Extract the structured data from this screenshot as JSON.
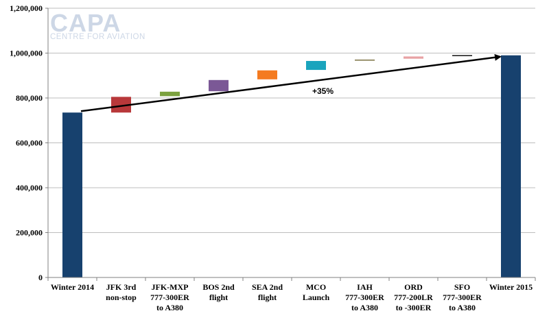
{
  "logo": {
    "main": "CAPA",
    "sub": "CENTRE FOR AVIATION"
  },
  "chart_data": {
    "type": "waterfall",
    "title": "",
    "xlabel": "",
    "ylabel": "",
    "ylim": [
      0,
      1200000
    ],
    "yticks": [
      0,
      200000,
      400000,
      600000,
      800000,
      1000000,
      1200000
    ],
    "ytick_labels": [
      "0",
      "200,000",
      "400,000",
      "600,000",
      "800,000",
      "1,000,000",
      "1,200,000"
    ],
    "grid": true,
    "categories": [
      {
        "lines": [
          "Winter 2014"
        ]
      },
      {
        "lines": [
          "JFK 3rd",
          "non-stop"
        ]
      },
      {
        "lines": [
          "JFK-MXP",
          "777-300ER",
          "to A380"
        ]
      },
      {
        "lines": [
          "BOS 2nd",
          "flight"
        ]
      },
      {
        "lines": [
          "SEA 2nd",
          "flight"
        ]
      },
      {
        "lines": [
          "MCO",
          "Launch"
        ]
      },
      {
        "lines": [
          "IAH",
          "777-300ER",
          "to A380"
        ]
      },
      {
        "lines": [
          "ORD",
          "777-200LR",
          "to -300ER"
        ]
      },
      {
        "lines": [
          "SFO",
          "777-300ER",
          "to A380"
        ]
      },
      {
        "lines": [
          "Winter 2015"
        ]
      }
    ],
    "bars": [
      {
        "kind": "total",
        "start": 0,
        "end": 735000,
        "color": "#17416e"
      },
      {
        "kind": "step",
        "start": 735000,
        "end": 805000,
        "color": "#b8383a"
      },
      {
        "kind": "step",
        "start": 808000,
        "end": 828000,
        "color": "#7ba23f"
      },
      {
        "kind": "step",
        "start": 830000,
        "end": 880000,
        "color": "#7b5896"
      },
      {
        "kind": "step",
        "start": 883000,
        "end": 923000,
        "color": "#f47b20"
      },
      {
        "kind": "step",
        "start": 925000,
        "end": 965000,
        "color": "#1aa4bd"
      },
      {
        "kind": "step",
        "start": 967000,
        "end": 971000,
        "color": "#7a7040"
      },
      {
        "kind": "step",
        "start": 975000,
        "end": 985000,
        "color": "#e8a2a4"
      },
      {
        "kind": "step",
        "start": 987000,
        "end": 991000,
        "color": "#111111"
      },
      {
        "kind": "total",
        "start": 0,
        "end": 990000,
        "color": "#17416e"
      }
    ],
    "annotations": [
      {
        "text": "+35%",
        "x_category": 5,
        "y": 830000
      }
    ],
    "trend_arrow": {
      "from_category": 0,
      "from_value": 735000,
      "to_category": 9,
      "to_value": 990000
    }
  }
}
